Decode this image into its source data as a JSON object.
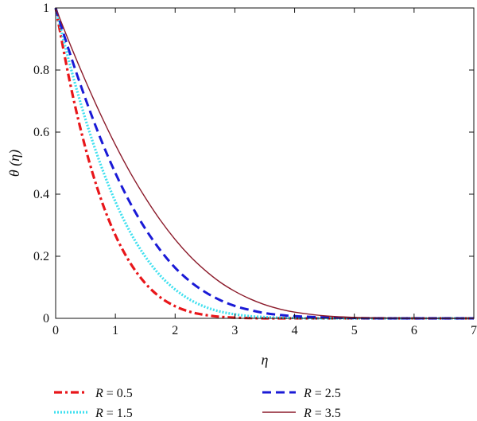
{
  "chart_data": {
    "type": "line",
    "xlabel": "η",
    "ylabel": "θ (η)",
    "xlim": [
      0,
      7
    ],
    "ylim": [
      0,
      1
    ],
    "x_ticks": [
      "0",
      "1",
      "2",
      "3",
      "4",
      "5",
      "6",
      "7"
    ],
    "y_ticks": [
      "0",
      "0.2",
      "0.4",
      "0.6",
      "0.8",
      "1"
    ],
    "grid": false,
    "legend_position": "bottom",
    "x": [
      0,
      0.25,
      0.5,
      0.75,
      1,
      1.25,
      1.5,
      1.75,
      2,
      2.25,
      2.5,
      2.75,
      3,
      3.25,
      3.5,
      3.75,
      4,
      4.5,
      5,
      5.5,
      6,
      6.5,
      7
    ],
    "series": [
      {
        "name": "R = 0.5",
        "param": "R",
        "value_text": "= 0.5",
        "color": "#e8161a",
        "style": "dashdot",
        "values": [
          1.0,
          0.75,
          0.548,
          0.389,
          0.268,
          0.178,
          0.113,
          0.068,
          0.039,
          0.021,
          0.011,
          0.005,
          0.002,
          0.001,
          0.0,
          0.0,
          0.0,
          0.0,
          0.0,
          0.0,
          0.0,
          0.0,
          0.0
        ]
      },
      {
        "name": "R = 1.5",
        "param": "R",
        "value_text": "= 1.5",
        "color": "#3fe0ef",
        "style": "dotted",
        "values": [
          1.0,
          0.809,
          0.641,
          0.497,
          0.376,
          0.277,
          0.199,
          0.138,
          0.093,
          0.06,
          0.037,
          0.022,
          0.013,
          0.007,
          0.004,
          0.002,
          0.001,
          0.0,
          0.0,
          0.0,
          0.0,
          0.0,
          0.0
        ]
      },
      {
        "name": "R = 2.5",
        "param": "R",
        "value_text": "= 2.5",
        "color": "#1a1ad6",
        "style": "dashed",
        "values": [
          1.0,
          0.847,
          0.707,
          0.58,
          0.468,
          0.371,
          0.289,
          0.22,
          0.163,
          0.119,
          0.085,
          0.059,
          0.04,
          0.027,
          0.017,
          0.011,
          0.007,
          0.003,
          0.001,
          0.0,
          0.0,
          0.0,
          0.0
        ]
      },
      {
        "name": "R = 3.5",
        "param": "R",
        "value_text": "= 3.5",
        "color": "#8b1a2a",
        "style": "solid",
        "values": [
          1.0,
          0.879,
          0.765,
          0.658,
          0.559,
          0.469,
          0.389,
          0.317,
          0.254,
          0.2,
          0.155,
          0.117,
          0.087,
          0.063,
          0.044,
          0.03,
          0.02,
          0.008,
          0.003,
          0.001,
          0.0,
          0.0,
          0.0
        ]
      }
    ]
  }
}
